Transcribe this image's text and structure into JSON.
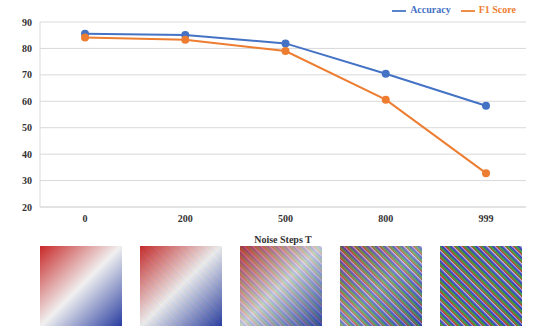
{
  "chart_data": {
    "type": "line",
    "x_label": "Noise Steps T",
    "categories": [
      "0",
      "200",
      "500",
      "800",
      "999"
    ],
    "series": [
      {
        "name": "Accuracy",
        "color": "#4472c4",
        "marker": "circle",
        "values": [
          85.6,
          85.1,
          81.9,
          70.4,
          58.3
        ]
      },
      {
        "name": "F1 Score",
        "color": "#ed7d31",
        "marker": "circle",
        "values": [
          84.1,
          83.3,
          79.0,
          60.6,
          32.8
        ]
      }
    ],
    "ylim": [
      20,
      90
    ],
    "yticks": [
      20,
      30,
      40,
      50,
      60,
      70,
      80,
      90
    ],
    "grid": true,
    "legend": "top right"
  }
}
